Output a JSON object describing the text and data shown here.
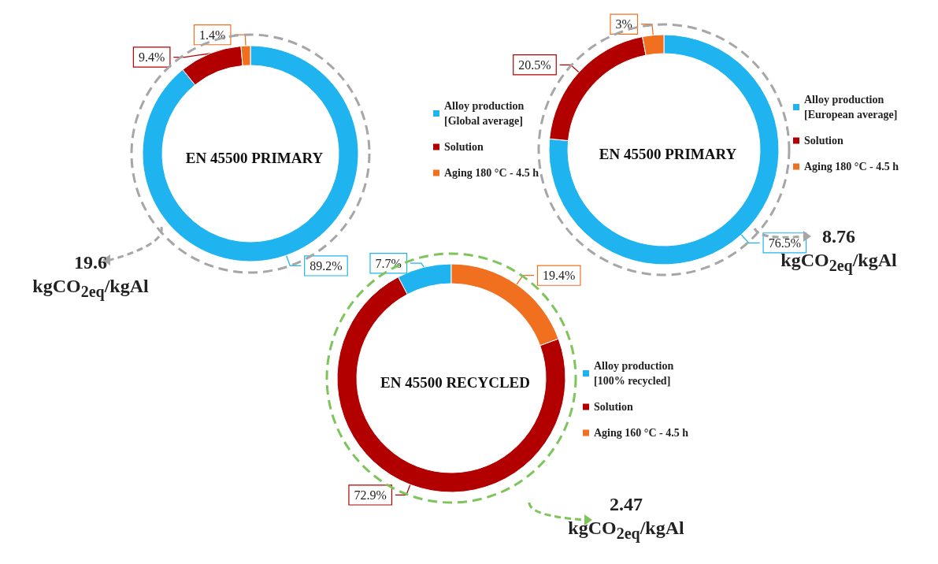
{
  "chart_data": [
    {
      "type": "donut",
      "title": "EN 45500 PRIMARY",
      "categories": [
        "Alloy production [Global average]",
        "Solution",
        "Aging 180 °C - 4.5 h"
      ],
      "values": [
        89.2,
        9.4,
        1.4
      ],
      "value_labels": [
        "89.2%",
        "9.4%",
        "1.4%"
      ],
      "colors": [
        "#1fb4f0",
        "#b20000",
        "#f07020"
      ],
      "legend": "right",
      "annotations": [
        "19.6 kgCO$_{2eq}$/kgAl"
      ]
    },
    {
      "type": "donut",
      "title": "EN 45500 PRIMARY",
      "categories": [
        "Alloy production [European average]",
        "Solution",
        "Aging 180 °C - 4.5 h"
      ],
      "values": [
        76.5,
        20.5,
        3
      ],
      "value_labels": [
        "76.5%",
        "20.5%",
        "3%"
      ],
      "colors": [
        "#1fb4f0",
        "#b20000",
        "#f07020"
      ],
      "legend": "right",
      "annotations": [
        "8.76 kgCO$_{2eq}$/kgAl"
      ]
    },
    {
      "type": "donut",
      "title": "EN 45500 RECYCLED",
      "categories": [
        "Alloy production [100% recycled]",
        "Solution",
        "Aging 160 °C - 4.5 h"
      ],
      "values": [
        7.7,
        72.9,
        19.4
      ],
      "value_labels": [
        "7.7%",
        "72.9%",
        "19.4%"
      ],
      "colors": [
        "#1fb4f0",
        "#b20000",
        "#f07020"
      ],
      "legend": "right",
      "annotations": [
        "2.47 kgCO$_{2eq}$/kgAl"
      ]
    }
  ]
}
